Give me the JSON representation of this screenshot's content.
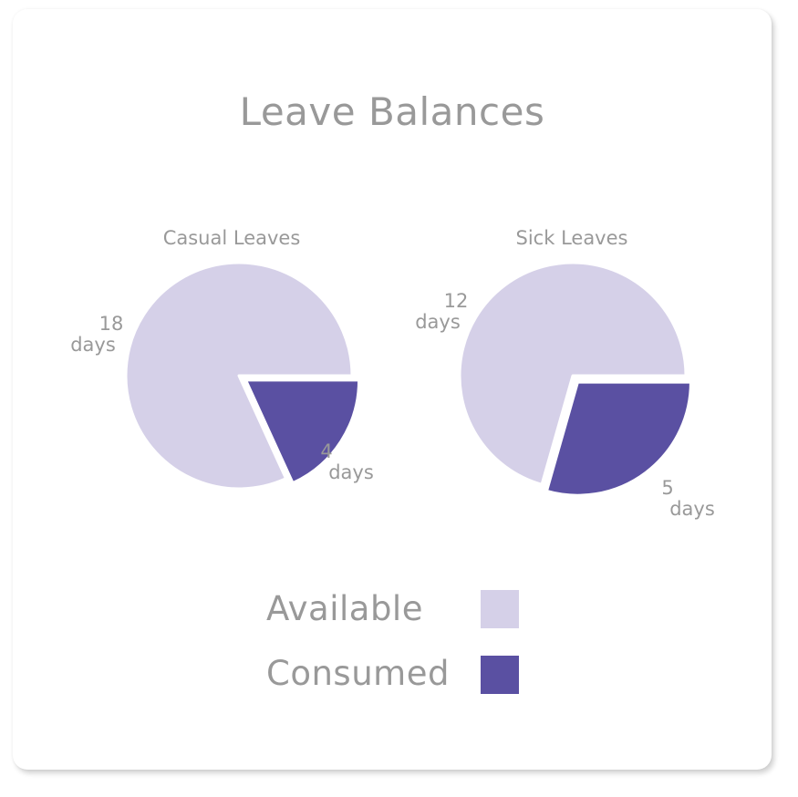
{
  "card": {
    "title": "Leave Balances"
  },
  "colors": {
    "available": "#d5d0e8",
    "consumed": "#5a50a2"
  },
  "chart_data": [
    {
      "type": "pie",
      "title": "Casual Leaves",
      "categories": [
        "Consumed",
        "Available"
      ],
      "values": [
        4,
        18
      ],
      "labels": [
        {
          "num": "4",
          "unit": "days"
        },
        {
          "num": "18",
          "unit": "days"
        }
      ]
    },
    {
      "type": "pie",
      "title": "Sick Leaves",
      "categories": [
        "Consumed",
        "Available"
      ],
      "values": [
        5,
        12
      ],
      "labels": [
        {
          "num": "5",
          "unit": "days"
        },
        {
          "num": "12",
          "unit": "days"
        }
      ]
    }
  ],
  "legend": {
    "items": [
      {
        "label": "Available",
        "color": "#d5d0e8"
      },
      {
        "label": "Consumed",
        "color": "#5a50a2"
      }
    ]
  }
}
